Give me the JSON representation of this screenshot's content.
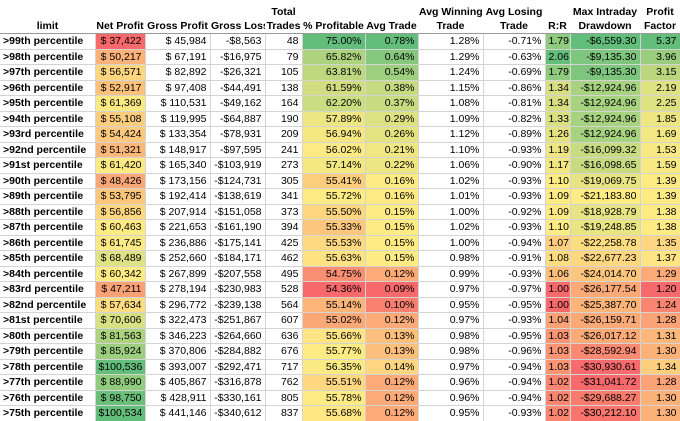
{
  "table": {
    "header": [
      [
        "limit"
      ],
      [
        "Net Profit"
      ],
      [
        "Gross Profit"
      ],
      [
        "Gross Loss"
      ],
      [
        "Total",
        "Trades"
      ],
      [
        "% Profitable"
      ],
      [
        "Avg Trade"
      ],
      [
        "Avg Winning",
        "Trade"
      ],
      [
        "Avg Losing",
        "Trade"
      ],
      [
        "R:R"
      ],
      [
        "Max Intraday",
        "Drawdown"
      ],
      [
        "Profit",
        "Factor"
      ]
    ],
    "rows": [
      [
        ">99th percentile",
        "$ 37,422",
        "$ 45,984",
        "-$8,563",
        "48",
        "75.00%",
        "0.78%",
        "1.28%",
        "-0.71%",
        "1.79",
        "-$6,559.30",
        "5.37"
      ],
      [
        ">98th percentile",
        "$ 50,217",
        "$ 67,191",
        "-$16,975",
        "79",
        "65.82%",
        "0.64%",
        "1.29%",
        "-0.63%",
        "2.06",
        "-$9,135.30",
        "3.96"
      ],
      [
        ">97th percentile",
        "$ 56,571",
        "$ 82,892",
        "-$26,321",
        "105",
        "63.81%",
        "0.54%",
        "1.24%",
        "-0.69%",
        "1.79",
        "-$9,135.30",
        "3.15"
      ],
      [
        ">96th percentile",
        "$ 52,917",
        "$ 97,408",
        "-$44,491",
        "138",
        "61.59%",
        "0.38%",
        "1.15%",
        "-0.86%",
        "1.34",
        "-$12,924.96",
        "2.19"
      ],
      [
        ">95th percentile",
        "$ 61,369",
        "$ 110,531",
        "-$49,162",
        "164",
        "62.20%",
        "0.37%",
        "1.08%",
        "-0.81%",
        "1.34",
        "-$12,924.96",
        "2.25"
      ],
      [
        ">94th percentile",
        "$ 55,108",
        "$ 119,995",
        "-$64,887",
        "190",
        "57.89%",
        "0.29%",
        "1.09%",
        "-0.82%",
        "1.33",
        "-$12,924.96",
        "1.85"
      ],
      [
        ">93rd percentile",
        "$ 54,424",
        "$ 133,354",
        "-$78,931",
        "209",
        "56.94%",
        "0.26%",
        "1.12%",
        "-0.89%",
        "1.26",
        "-$12,924.96",
        "1.69"
      ],
      [
        ">92nd percentile",
        "$ 51,321",
        "$ 148,917",
        "-$97,595",
        "241",
        "56.02%",
        "0.21%",
        "1.10%",
        "-0.93%",
        "1.19",
        "-$16,099.32",
        "1.53"
      ],
      [
        ">91st percentile",
        "$ 61,420",
        "$ 165,340",
        "-$103,919",
        "273",
        "57.14%",
        "0.22%",
        "1.06%",
        "-0.90%",
        "1.17",
        "-$16,098.65",
        "1.59"
      ],
      [
        ">90th percentile",
        "$ 48,426",
        "$ 173,156",
        "-$124,731",
        "305",
        "55.41%",
        "0.16%",
        "1.02%",
        "-0.93%",
        "1.10",
        "-$19,069.75",
        "1.39"
      ],
      [
        ">89th percentile",
        "$ 53,795",
        "$ 192,414",
        "-$138,619",
        "341",
        "55.72%",
        "0.16%",
        "1.01%",
        "-0.93%",
        "1.09",
        "-$21,183.80",
        "1.39"
      ],
      [
        ">88th percentile",
        "$ 56,856",
        "$ 207,914",
        "-$151,058",
        "373",
        "55.50%",
        "0.15%",
        "1.00%",
        "-0.92%",
        "1.09",
        "-$18,928.79",
        "1.38"
      ],
      [
        ">87th percentile",
        "$ 60,463",
        "$ 221,653",
        "-$161,190",
        "394",
        "55.33%",
        "0.15%",
        "1.02%",
        "-0.93%",
        "1.10",
        "-$19,248.85",
        "1.38"
      ],
      [
        ">86th percentile",
        "$ 61,745",
        "$ 236,886",
        "-$175,141",
        "425",
        "55.53%",
        "0.15%",
        "1.00%",
        "-0.94%",
        "1.07",
        "-$22,258.78",
        "1.35"
      ],
      [
        ">85th percentile",
        "$ 68,489",
        "$ 252,660",
        "-$184,171",
        "462",
        "55.63%",
        "0.15%",
        "0.98%",
        "-0.91%",
        "1.08",
        "-$22,677.23",
        "1.37"
      ],
      [
        ">84th percentile",
        "$ 60,342",
        "$ 267,899",
        "-$207,558",
        "495",
        "54.75%",
        "0.12%",
        "0.99%",
        "-0.93%",
        "1.06",
        "-$24,014.70",
        "1.29"
      ],
      [
        ">83rd percentile",
        "$ 47,211",
        "$ 278,194",
        "-$230,983",
        "528",
        "54.36%",
        "0.09%",
        "0.97%",
        "-0.97%",
        "1.00",
        "-$26,177.54",
        "1.20"
      ],
      [
        ">82nd percentile",
        "$ 57,634",
        "$ 296,772",
        "-$239,138",
        "564",
        "55.14%",
        "0.10%",
        "0.95%",
        "-0.95%",
        "1.00",
        "-$25,387.70",
        "1.24"
      ],
      [
        ">81st percentile",
        "$ 70,606",
        "$ 322,473",
        "-$251,867",
        "607",
        "55.02%",
        "0.12%",
        "0.97%",
        "-0.93%",
        "1.04",
        "-$26,159.71",
        "1.28"
      ],
      [
        ">80th percentile",
        "$ 81,563",
        "$ 346,223",
        "-$264,660",
        "636",
        "55.66%",
        "0.13%",
        "0.98%",
        "-0.95%",
        "1.03",
        "-$26,017.12",
        "1.31"
      ],
      [
        ">79th percentile",
        "$ 85,924",
        "$ 370,806",
        "-$284,882",
        "676",
        "55.77%",
        "0.13%",
        "0.98%",
        "-0.96%",
        "1.03",
        "-$28,592.94",
        "1.30"
      ],
      [
        ">78th percentile",
        "$100,536",
        "$ 393,007",
        "-$292,471",
        "717",
        "56.35%",
        "0.14%",
        "0.97%",
        "-0.94%",
        "1.03",
        "-$30,930.61",
        "1.34"
      ],
      [
        ">77th percentile",
        "$ 88,990",
        "$ 405,867",
        "-$316,878",
        "762",
        "55.51%",
        "0.12%",
        "0.96%",
        "-0.94%",
        "1.02",
        "-$31,041.72",
        "1.28"
      ],
      [
        ">76th percentile",
        "$ 98,750",
        "$ 428,911",
        "-$330,161",
        "805",
        "55.78%",
        "0.12%",
        "0.96%",
        "-0.94%",
        "1.02",
        "-$29,688.27",
        "1.30"
      ],
      [
        ">75th percentile",
        "$100,534",
        "$ 441,146",
        "-$340,612",
        "837",
        "55.68%",
        "0.12%",
        "0.95%",
        "-0.93%",
        "1.02",
        "-$30,212.10",
        "1.30"
      ]
    ]
  }
}
